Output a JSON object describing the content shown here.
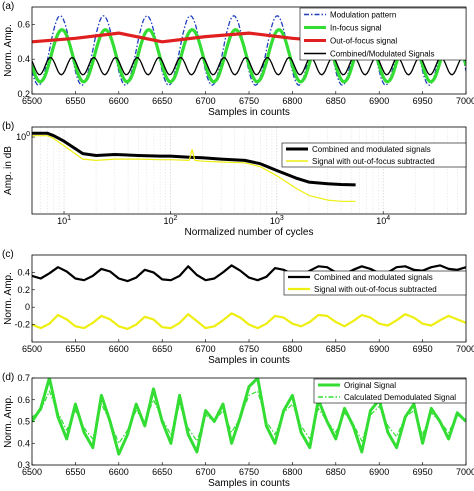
{
  "chart_data": [
    {
      "type": "line",
      "panel_label": "(a)",
      "xlabel": "Samples in counts",
      "ylabel": "Norm. Amp.",
      "xlim": [
        6500,
        7000
      ],
      "ylim": [
        0.2,
        0.7
      ],
      "x_ticks": [
        "6500",
        "6550",
        "6600",
        "6650",
        "6700",
        "6750",
        "6800",
        "6850",
        "6900",
        "6950",
        "7000"
      ],
      "y_ticks": [
        "0.2",
        "0.4",
        "0.6"
      ],
      "legend_position": "top-right",
      "series": [
        {
          "name": "Modulation pattern",
          "color": "#1f3fbf",
          "style": "dashdot",
          "kind": "sine",
          "offset": 0.45,
          "amp": 0.2,
          "period": 50,
          "phase": 6520
        },
        {
          "name": "In-focus signal",
          "color": "#33dd33",
          "style": "solid",
          "kind": "sine",
          "offset": 0.42,
          "amp": 0.15,
          "period": 50,
          "phase": 6522
        },
        {
          "name": "Out-of-focus signal",
          "color": "#e02020",
          "style": "solid",
          "kind": "points",
          "x": [
            6500,
            6550,
            6600,
            6650,
            6700,
            6750,
            6800,
            6850,
            6900,
            6950,
            7000
          ],
          "y": [
            0.5,
            0.52,
            0.55,
            0.5,
            0.53,
            0.55,
            0.52,
            0.5,
            0.51,
            0.5,
            0.49
          ]
        },
        {
          "name": "Combined/Modulated Signals",
          "color": "#000000",
          "style": "solid",
          "kind": "sine",
          "offset": 0.36,
          "amp": 0.05,
          "period": 25,
          "phase": 6515
        }
      ]
    },
    {
      "type": "line",
      "panel_label": "(b)",
      "xlabel": "Normalized number of cycles",
      "ylabel": "Amp. in dB",
      "xscale": "log",
      "xlim": [
        5,
        60000
      ],
      "ylim": [
        0.005,
        2
      ],
      "x_ticks": [
        "10^1",
        "10^2",
        "10^3",
        "10^4"
      ],
      "y_ticks": [
        "10^0"
      ],
      "grid": true,
      "legend_position": "top-right",
      "series": [
        {
          "name": "Combined and modulated signals",
          "color": "#000000",
          "x": [
            5,
            7,
            8,
            10,
            15,
            20,
            30,
            50,
            80,
            100,
            150,
            200,
            300,
            500,
            700,
            1000,
            1500,
            2000,
            3000,
            4000,
            5500
          ],
          "y": [
            1.3,
            1.3,
            1.1,
            0.75,
            0.32,
            0.28,
            0.3,
            0.28,
            0.27,
            0.27,
            0.25,
            0.24,
            0.22,
            0.2,
            0.16,
            0.1,
            0.06,
            0.045,
            0.04,
            0.038,
            0.037
          ]
        },
        {
          "name": "Signal with out-of-focus subtracted",
          "color": "#eeee11",
          "x": [
            5,
            7,
            8,
            10,
            15,
            20,
            30,
            50,
            80,
            100,
            150,
            160,
            170,
            200,
            300,
            500,
            700,
            1000,
            1500,
            2000,
            3000,
            4000,
            5500
          ],
          "y": [
            1.1,
            1.1,
            0.9,
            0.55,
            0.22,
            0.2,
            0.22,
            0.22,
            0.21,
            0.21,
            0.2,
            0.42,
            0.2,
            0.19,
            0.18,
            0.17,
            0.13,
            0.07,
            0.03,
            0.018,
            0.013,
            0.012,
            0.012
          ]
        }
      ]
    },
    {
      "type": "line",
      "panel_label": "(c)",
      "xlabel": "Samples in counts",
      "ylabel": "Norm. Amp.",
      "xlim": [
        6500,
        7000
      ],
      "ylim": [
        -0.4,
        0.6
      ],
      "x_ticks": [
        "6500",
        "6550",
        "6600",
        "6650",
        "6700",
        "6750",
        "6800",
        "6850",
        "6900",
        "6950",
        "7000"
      ],
      "y_ticks": [
        "-0.2",
        "0",
        "0.2",
        "0.4"
      ],
      "legend_position": "top-right",
      "series": [
        {
          "name": "Combined and modulated signals",
          "color": "#000000",
          "x": [
            6500,
            6510,
            6520,
            6530,
            6540,
            6550,
            6560,
            6570,
            6580,
            6590,
            6600,
            6610,
            6620,
            6630,
            6640,
            6650,
            6660,
            6670,
            6680,
            6690,
            6700,
            6710,
            6720,
            6730,
            6740,
            6750,
            6760,
            6770,
            6780,
            6790,
            6800,
            6810,
            6820,
            6830,
            6840,
            6850,
            6860,
            6870,
            6880,
            6890,
            6900,
            6910,
            6920,
            6930,
            6940,
            6950,
            6960,
            6970,
            6980,
            6990,
            7000
          ],
          "y": [
            0.36,
            0.33,
            0.39,
            0.46,
            0.41,
            0.33,
            0.31,
            0.36,
            0.44,
            0.41,
            0.33,
            0.3,
            0.34,
            0.43,
            0.4,
            0.32,
            0.31,
            0.36,
            0.47,
            0.37,
            0.31,
            0.33,
            0.4,
            0.48,
            0.42,
            0.34,
            0.31,
            0.35,
            0.45,
            0.43,
            0.38,
            0.36,
            0.42,
            0.47,
            0.46,
            0.4,
            0.38,
            0.43,
            0.47,
            0.44,
            0.39,
            0.4,
            0.46,
            0.47,
            0.43,
            0.42,
            0.46,
            0.48,
            0.44,
            0.43,
            0.46
          ]
        },
        {
          "name": "Signal with out-of-focus subtracted",
          "color": "#eeee11",
          "x": [
            6500,
            6510,
            6520,
            6530,
            6540,
            6550,
            6560,
            6570,
            6580,
            6590,
            6600,
            6610,
            6620,
            6630,
            6640,
            6650,
            6660,
            6670,
            6680,
            6690,
            6700,
            6710,
            6720,
            6730,
            6740,
            6750,
            6760,
            6770,
            6780,
            6790,
            6800,
            6810,
            6820,
            6830,
            6840,
            6850,
            6860,
            6870,
            6880,
            6890,
            6900,
            6910,
            6920,
            6930,
            6940,
            6950,
            6960,
            6970,
            6980,
            6990,
            7000
          ],
          "y": [
            -0.2,
            -0.24,
            -0.19,
            -0.09,
            -0.14,
            -0.22,
            -0.24,
            -0.18,
            -0.1,
            -0.14,
            -0.22,
            -0.25,
            -0.2,
            -0.11,
            -0.14,
            -0.23,
            -0.24,
            -0.18,
            -0.08,
            -0.16,
            -0.24,
            -0.22,
            -0.15,
            -0.07,
            -0.12,
            -0.2,
            -0.24,
            -0.19,
            -0.1,
            -0.12,
            -0.19,
            -0.22,
            -0.17,
            -0.09,
            -0.1,
            -0.17,
            -0.22,
            -0.16,
            -0.09,
            -0.12,
            -0.19,
            -0.21,
            -0.15,
            -0.08,
            -0.12,
            -0.19,
            -0.21,
            -0.15,
            -0.1,
            -0.14,
            -0.18
          ]
        }
      ]
    },
    {
      "type": "line",
      "panel_label": "(d)",
      "xlabel": "Samples in counts",
      "ylabel": "Norm. Amp.",
      "xlim": [
        6500,
        7000
      ],
      "ylim": [
        0.3,
        0.7
      ],
      "x_ticks": [
        "6500",
        "6550",
        "6600",
        "6650",
        "6700",
        "6750",
        "6800",
        "6850",
        "6900",
        "6950",
        "7000"
      ],
      "y_ticks": [
        "0.3",
        "0.4",
        "0.5",
        "0.6",
        "0.7"
      ],
      "legend_position": "top-right",
      "series": [
        {
          "name": "Original Signal",
          "color": "#33dd33",
          "style": "solid",
          "x": [
            6500,
            6510,
            6520,
            6530,
            6540,
            6550,
            6560,
            6570,
            6580,
            6590,
            6600,
            6610,
            6620,
            6630,
            6640,
            6650,
            6660,
            6670,
            6680,
            6690,
            6700,
            6710,
            6720,
            6730,
            6740,
            6750,
            6760,
            6770,
            6780,
            6790,
            6800,
            6810,
            6820,
            6830,
            6840,
            6850,
            6860,
            6870,
            6880,
            6890,
            6900,
            6910,
            6920,
            6930,
            6940,
            6950,
            6960,
            6970,
            6980,
            6990,
            7000
          ],
          "y": [
            0.5,
            0.56,
            0.7,
            0.52,
            0.42,
            0.58,
            0.45,
            0.38,
            0.62,
            0.5,
            0.35,
            0.44,
            0.58,
            0.48,
            0.65,
            0.5,
            0.4,
            0.62,
            0.44,
            0.36,
            0.55,
            0.5,
            0.58,
            0.4,
            0.52,
            0.66,
            0.7,
            0.48,
            0.4,
            0.55,
            0.62,
            0.45,
            0.38,
            0.6,
            0.5,
            0.42,
            0.56,
            0.48,
            0.36,
            0.55,
            0.6,
            0.45,
            0.38,
            0.52,
            0.58,
            0.4,
            0.56,
            0.5,
            0.42,
            0.54,
            0.5
          ]
        },
        {
          "name": "Calculated Demodulated Signal",
          "color": "#33dd33",
          "style": "dashdot",
          "x": [
            6500,
            6510,
            6520,
            6530,
            6540,
            6550,
            6560,
            6570,
            6580,
            6590,
            6600,
            6610,
            6620,
            6630,
            6640,
            6650,
            6660,
            6670,
            6680,
            6690,
            6700,
            6710,
            6720,
            6730,
            6740,
            6750,
            6760,
            6770,
            6780,
            6790,
            6800,
            6810,
            6820,
            6830,
            6840,
            6850,
            6860,
            6870,
            6880,
            6890,
            6900,
            6910,
            6920,
            6930,
            6940,
            6950,
            6960,
            6970,
            6980,
            6990,
            7000
          ],
          "y": [
            0.52,
            0.55,
            0.64,
            0.54,
            0.46,
            0.55,
            0.47,
            0.42,
            0.58,
            0.5,
            0.4,
            0.46,
            0.55,
            0.5,
            0.6,
            0.51,
            0.44,
            0.58,
            0.47,
            0.41,
            0.53,
            0.5,
            0.55,
            0.45,
            0.52,
            0.62,
            0.64,
            0.5,
            0.44,
            0.54,
            0.58,
            0.48,
            0.42,
            0.56,
            0.5,
            0.45,
            0.54,
            0.49,
            0.41,
            0.53,
            0.57,
            0.48,
            0.43,
            0.52,
            0.55,
            0.44,
            0.54,
            0.5,
            0.45,
            0.53,
            0.5
          ]
        }
      ]
    }
  ]
}
